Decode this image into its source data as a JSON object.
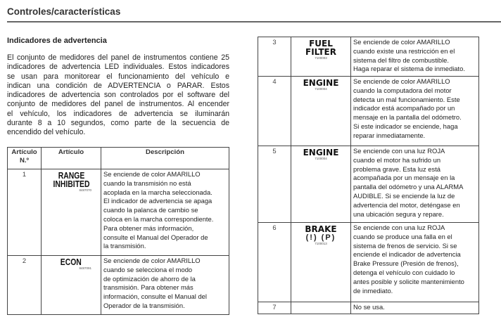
{
  "header": {
    "title": "Controles/características"
  },
  "section": {
    "title": "Indicadores de advertencia",
    "intro_lines": [
      "El conjunto de medidores del panel de instrumentos contiene 25",
      "indicadores de advertencia LED individuales. Estos indicadores",
      "se usan para monitorear el funcionamiento del vehículo e",
      "indican una condición de ADVERTENCIA o PARAR. Estos",
      "indicadores de advertencia son controlados por el software del",
      "conjunto de medidores del panel de instrumentos. Al encender",
      "el vehículo, los indicadores de advertencia se iluminarán",
      "durante 8 a 10 segundos, como parte de la secuencia de",
      "encendido del vehículo."
    ]
  },
  "table": {
    "headers": {
      "num_1": "Artículo",
      "num_2": "N.º",
      "item": "Artículo",
      "desc": "Descripción"
    },
    "rows": [
      {
        "num": "1",
        "label": [
          "RANGE",
          "INHIBITED"
        ],
        "code": "8487070",
        "desc": [
          "Se enciende de color AMARILLO",
          "cuando la transmisión no está",
          "acoplada en la marcha seleccionada.",
          "El indicador de advertencia se apaga",
          "cuando la palanca de cambio se",
          "coloca en la marcha correspondiente.",
          "Para obtener más información,",
          "consulte el Manual del Operador de",
          "la transmisión."
        ]
      },
      {
        "num": "2",
        "label": [
          "ECON"
        ],
        "code": "8487091",
        "desc": [
          "Se enciende de color AMARILLO",
          "cuando se selecciona el modo",
          "de optimización de ahorro de la",
          "transmisión.  Para obtener más",
          "información, consulte el Manual del",
          "Operador de la transmisión."
        ]
      },
      {
        "num": "3",
        "label": [
          "FUEL",
          "FILTER"
        ],
        "code": "7100003",
        "desc": [
          "Se enciende de color AMARILLO",
          "cuando existe una restricción en el",
          "sistema del filtro de combustible.",
          "Haga reparar el sistema de inmediato."
        ]
      },
      {
        "num": "4",
        "label": [
          "ENGINE"
        ],
        "code": "7100004",
        "desc": [
          "Se enciende de color AMARILLO",
          "cuando la computadora del motor",
          "detecta un mal funcionamiento. Este",
          "indicador está acompañado por un",
          "mensaje en la pantalla del odómetro.",
          "Si este indicador se enciende, haga",
          "reparar inmediatamente."
        ]
      },
      {
        "num": "5",
        "label": [
          "ENGINE"
        ],
        "code": "7100004",
        "desc": [
          "Se enciende con una luz ROJA",
          "cuando el motor ha sufrido un",
          "problema grave.  Esta luz está",
          "acompañada por un mensaje en la",
          "pantalla del odómetro y una ALARMA",
          "AUDIBLE. Si se enciende la luz de",
          "advertencia del motor, deténgase en",
          "una ubicación segura y repare."
        ]
      },
      {
        "num": "6",
        "label": [
          "BRAKE"
        ],
        "symbols": "(!) (P)",
        "code": "7100013",
        "desc": [
          "Se enciende con una luz ROJA",
          "cuando se produce una falla en el",
          "sistema de frenos de servicio. Si se",
          "enciende el indicador de advertencia",
          "Brake Pressure (Presión de frenos),",
          "detenga el vehículo con cuidado lo",
          "antes posible y solicite mantenimiento",
          "de inmediato."
        ]
      },
      {
        "num": "7",
        "label": [],
        "code": "",
        "desc": [
          "No se usa."
        ]
      }
    ]
  }
}
